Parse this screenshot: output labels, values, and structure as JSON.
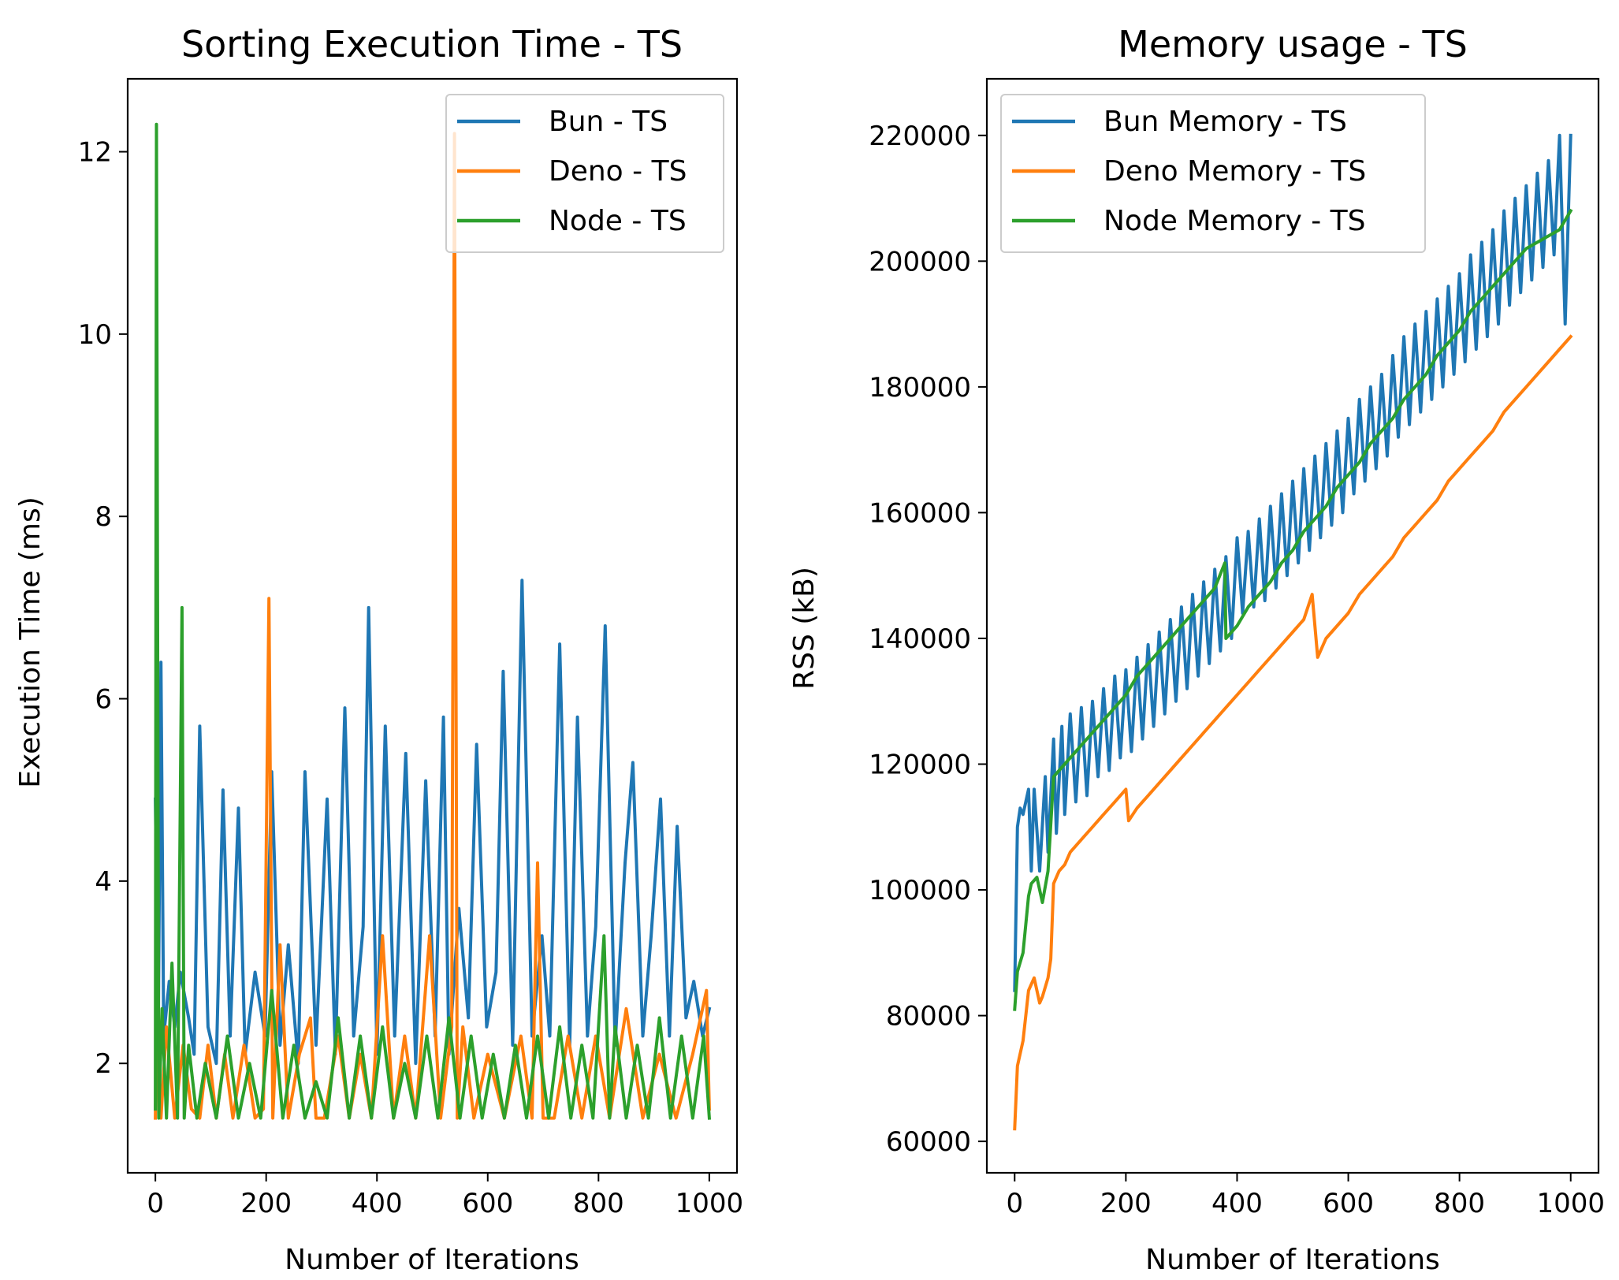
{
  "chart_data": [
    {
      "type": "line",
      "title": "Sorting Execution Time - TS",
      "xlabel": "Number of Iterations",
      "ylabel": "Execution Time (ms)",
      "xlim": [
        -50,
        1050
      ],
      "ylim": [
        0.8,
        12.8
      ],
      "xticks": [
        0,
        200,
        400,
        600,
        800,
        1000
      ],
      "yticks": [
        2,
        4,
        6,
        8,
        10,
        12
      ],
      "legend_position": "upper right",
      "grid": false,
      "series": [
        {
          "name": "Bun - TS",
          "color": "#1f77b4",
          "x": [
            0,
            5,
            10,
            15,
            25,
            35,
            45,
            60,
            70,
            80,
            95,
            110,
            122,
            135,
            150,
            162,
            180,
            198,
            210,
            225,
            240,
            258,
            270,
            290,
            310,
            325,
            342,
            358,
            375,
            385,
            400,
            415,
            432,
            452,
            470,
            488,
            505,
            520,
            530,
            548,
            565,
            580,
            598,
            615,
            628,
            645,
            662,
            680,
            698,
            712,
            730,
            748,
            762,
            780,
            795,
            812,
            830,
            848,
            862,
            880,
            895,
            912,
            928,
            942,
            958,
            972,
            988,
            1000
          ],
          "y": [
            4.9,
            2.2,
            6.4,
            2.3,
            2.9,
            2.4,
            3.0,
            2.5,
            2.1,
            5.7,
            2.4,
            2.0,
            5.0,
            2.3,
            4.8,
            2.1,
            3.0,
            2.3,
            5.2,
            2.2,
            3.3,
            2.0,
            5.2,
            2.2,
            4.9,
            2.1,
            5.9,
            2.3,
            3.5,
            7.0,
            2.1,
            5.7,
            2.3,
            5.4,
            2.0,
            5.1,
            2.3,
            5.8,
            2.1,
            3.7,
            2.5,
            5.5,
            2.4,
            3.0,
            6.3,
            2.2,
            7.3,
            2.3,
            3.4,
            2.3,
            6.6,
            2.2,
            5.8,
            2.3,
            3.5,
            6.8,
            2.2,
            4.2,
            5.3,
            2.3,
            3.4,
            4.9,
            2.3,
            4.6,
            2.5,
            2.9,
            2.3,
            2.6
          ]
        },
        {
          "name": "Deno - TS",
          "color": "#ff7f0e",
          "x": [
            0,
            3,
            10,
            20,
            35,
            50,
            65,
            80,
            95,
            110,
            125,
            140,
            160,
            180,
            195,
            205,
            212,
            225,
            240,
            260,
            280,
            290,
            305,
            330,
            350,
            370,
            390,
            410,
            430,
            450,
            470,
            495,
            515,
            535,
            540,
            545,
            555,
            575,
            600,
            630,
            660,
            680,
            690,
            700,
            720,
            745,
            770,
            795,
            820,
            850,
            880,
            910,
            940,
            970,
            995,
            1000
          ],
          "y": [
            1.4,
            2.7,
            1.4,
            2.4,
            1.4,
            2.2,
            1.5,
            1.4,
            2.2,
            1.4,
            2.1,
            1.4,
            2.2,
            1.4,
            1.5,
            7.1,
            1.4,
            3.3,
            1.4,
            2.1,
            2.5,
            1.4,
            1.4,
            2.3,
            1.4,
            2.1,
            1.4,
            3.4,
            1.4,
            2.3,
            1.4,
            3.4,
            1.4,
            2.4,
            12.2,
            1.4,
            2.4,
            1.4,
            2.1,
            1.4,
            2.3,
            1.4,
            4.2,
            1.4,
            1.4,
            2.3,
            1.4,
            2.3,
            1.4,
            2.6,
            1.4,
            2.1,
            1.4,
            2.1,
            2.8,
            1.5
          ]
        },
        {
          "name": "Node - TS",
          "color": "#2ca02c",
          "x": [
            0,
            2,
            6,
            12,
            20,
            30,
            40,
            48,
            52,
            60,
            75,
            90,
            110,
            130,
            150,
            170,
            190,
            210,
            230,
            250,
            270,
            290,
            310,
            330,
            350,
            370,
            390,
            410,
            430,
            450,
            470,
            490,
            510,
            530,
            550,
            570,
            590,
            610,
            630,
            650,
            670,
            690,
            710,
            730,
            750,
            770,
            790,
            810,
            820,
            830,
            850,
            870,
            890,
            910,
            930,
            950,
            970,
            990,
            1000
          ],
          "y": [
            1.5,
            12.3,
            1.4,
            2.6,
            1.4,
            3.1,
            1.4,
            7.0,
            1.4,
            2.2,
            1.4,
            2.0,
            1.4,
            2.3,
            1.4,
            2.0,
            1.4,
            2.8,
            1.4,
            2.2,
            1.4,
            1.8,
            1.4,
            2.5,
            1.4,
            2.3,
            1.4,
            2.4,
            1.4,
            2.0,
            1.4,
            2.3,
            1.4,
            2.5,
            1.4,
            2.3,
            1.4,
            2.1,
            1.4,
            2.2,
            1.4,
            2.3,
            1.4,
            2.4,
            1.4,
            2.2,
            1.4,
            3.4,
            1.4,
            2.4,
            1.4,
            2.2,
            1.4,
            2.5,
            1.4,
            2.3,
            1.4,
            2.3,
            1.4
          ]
        }
      ]
    },
    {
      "type": "line",
      "title": "Memory usage - TS",
      "xlabel": "Number of Iterations",
      "ylabel": "RSS (kB)",
      "xlim": [
        -50,
        1050
      ],
      "ylim": [
        55000,
        229000
      ],
      "xticks": [
        0,
        200,
        400,
        600,
        800,
        1000
      ],
      "yticks": [
        60000,
        80000,
        100000,
        120000,
        140000,
        160000,
        180000,
        200000,
        220000
      ],
      "legend_position": "upper left",
      "grid": false,
      "series": [
        {
          "name": "Bun Memory - TS",
          "color": "#1f77b4",
          "x": [
            0,
            5,
            10,
            15,
            25,
            30,
            35,
            45,
            55,
            60,
            70,
            75,
            85,
            90,
            100,
            110,
            120,
            130,
            140,
            150,
            160,
            170,
            180,
            190,
            200,
            210,
            220,
            230,
            240,
            250,
            260,
            270,
            280,
            290,
            300,
            310,
            320,
            330,
            340,
            350,
            360,
            370,
            380,
            390,
            400,
            410,
            420,
            430,
            440,
            450,
            460,
            470,
            480,
            490,
            500,
            510,
            520,
            530,
            540,
            550,
            560,
            570,
            580,
            590,
            600,
            610,
            620,
            630,
            640,
            650,
            660,
            670,
            680,
            690,
            700,
            710,
            720,
            730,
            740,
            750,
            760,
            770,
            780,
            790,
            800,
            810,
            820,
            830,
            840,
            850,
            860,
            870,
            880,
            890,
            900,
            910,
            920,
            930,
            940,
            950,
            960,
            970,
            980,
            990,
            1000
          ],
          "y": [
            84000,
            110000,
            113000,
            112000,
            116000,
            103000,
            116000,
            103000,
            118000,
            106000,
            124000,
            109000,
            126000,
            112000,
            128000,
            114000,
            129000,
            115000,
            130000,
            118000,
            132000,
            119000,
            134000,
            121000,
            135000,
            122000,
            137000,
            124000,
            139000,
            126000,
            141000,
            128000,
            143000,
            130000,
            145000,
            132000,
            147000,
            134000,
            149000,
            136000,
            151000,
            138000,
            153000,
            140000,
            156000,
            144000,
            157000,
            145000,
            159000,
            146000,
            161000,
            148000,
            163000,
            150000,
            165000,
            152000,
            167000,
            154000,
            169000,
            156000,
            171000,
            158000,
            173000,
            160000,
            175000,
            163000,
            178000,
            165000,
            180000,
            167000,
            182000,
            169000,
            185000,
            172000,
            188000,
            174000,
            190000,
            176000,
            192000,
            178000,
            194000,
            180000,
            196000,
            182000,
            198000,
            184000,
            201000,
            186000,
            203000,
            188000,
            205000,
            190000,
            208000,
            193000,
            210000,
            195000,
            212000,
            197000,
            214000,
            199000,
            216000,
            201000,
            220000,
            190000,
            220000
          ]
        },
        {
          "name": "Deno Memory - TS",
          "color": "#ff7f0e",
          "x": [
            0,
            5,
            15,
            25,
            35,
            45,
            50,
            60,
            65,
            70,
            80,
            90,
            100,
            120,
            140,
            160,
            180,
            200,
            205,
            220,
            240,
            260,
            280,
            300,
            320,
            340,
            360,
            380,
            400,
            420,
            440,
            460,
            480,
            500,
            520,
            535,
            545,
            560,
            580,
            600,
            620,
            640,
            660,
            680,
            700,
            720,
            740,
            760,
            780,
            800,
            820,
            840,
            860,
            880,
            900,
            920,
            940,
            960,
            980,
            1000
          ],
          "y": [
            62000,
            72000,
            76000,
            84000,
            86000,
            82000,
            83000,
            86000,
            89000,
            101000,
            103000,
            104000,
            106000,
            108000,
            110000,
            112000,
            114000,
            116000,
            111000,
            113000,
            115000,
            117000,
            119000,
            121000,
            123000,
            125000,
            127000,
            129000,
            131000,
            133000,
            135000,
            137000,
            139000,
            141000,
            143000,
            147000,
            137000,
            140000,
            142000,
            144000,
            147000,
            149000,
            151000,
            153000,
            156000,
            158000,
            160000,
            162000,
            165000,
            167000,
            169000,
            171000,
            173000,
            176000,
            178000,
            180000,
            182000,
            184000,
            186000,
            188000
          ]
        },
        {
          "name": "Node Memory - TS",
          "color": "#2ca02c",
          "x": [
            0,
            5,
            15,
            25,
            30,
            40,
            50,
            60,
            70,
            80,
            100,
            120,
            140,
            160,
            180,
            200,
            220,
            240,
            260,
            280,
            300,
            320,
            340,
            360,
            378,
            380,
            400,
            420,
            440,
            460,
            480,
            500,
            520,
            540,
            560,
            580,
            600,
            620,
            640,
            660,
            680,
            700,
            720,
            740,
            760,
            780,
            800,
            820,
            840,
            860,
            880,
            900,
            920,
            940,
            960,
            980,
            1000
          ],
          "y": [
            81000,
            87000,
            90000,
            99000,
            101000,
            102000,
            98000,
            103000,
            118000,
            119000,
            121000,
            123000,
            125000,
            127000,
            129000,
            131000,
            134000,
            136000,
            138000,
            140000,
            142000,
            144000,
            146000,
            148000,
            152000,
            140000,
            142000,
            145000,
            147000,
            149000,
            152000,
            154000,
            157000,
            159000,
            161000,
            164000,
            166000,
            168000,
            171000,
            173000,
            175000,
            178000,
            180000,
            182000,
            185000,
            187000,
            189000,
            192000,
            194000,
            196000,
            198000,
            200000,
            202000,
            203000,
            204000,
            205000,
            208000
          ]
        }
      ]
    }
  ]
}
